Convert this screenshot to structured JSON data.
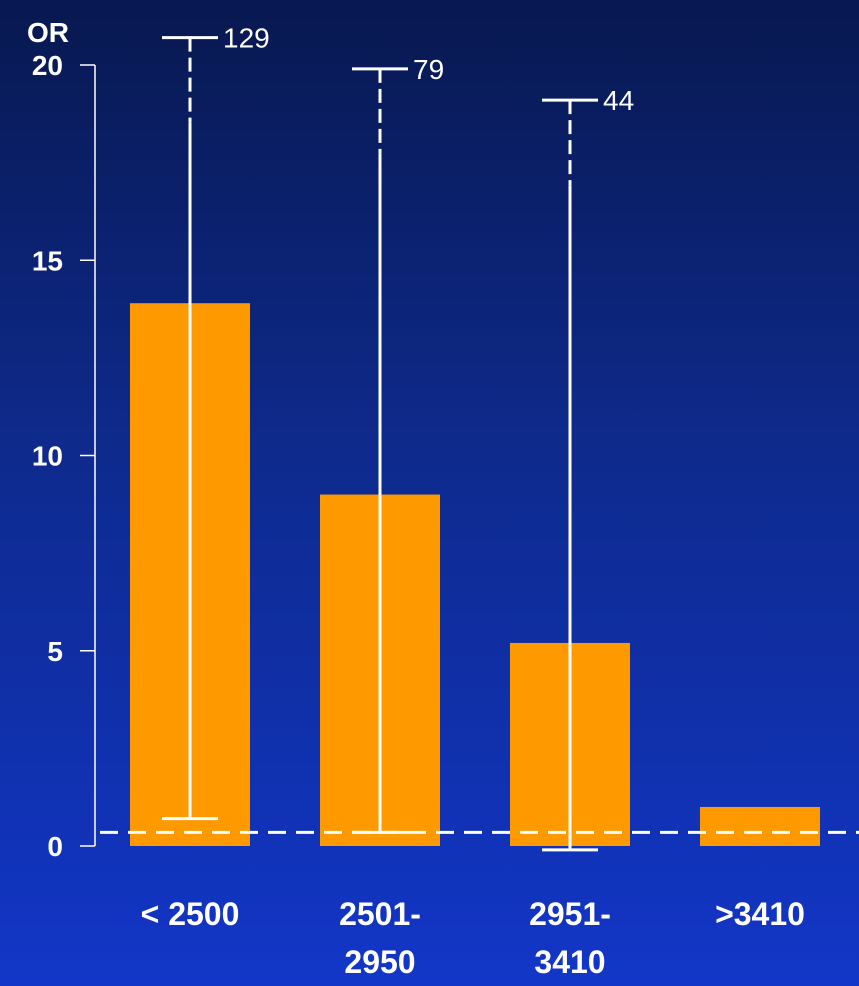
{
  "chart_data": {
    "type": "bar",
    "ylabel": "OR",
    "ylim": [
      0,
      20
    ],
    "yticks": [
      0,
      5,
      10,
      15,
      20
    ],
    "categories": [
      [
        "< 2500"
      ],
      [
        "2501-",
        "2950"
      ],
      [
        "2951-",
        "3410"
      ],
      [
        ">3410"
      ]
    ],
    "values": [
      13.9,
      9.0,
      5.2,
      1.0
    ],
    "ci_lower": [
      0.7,
      0.35,
      -0.1,
      null
    ],
    "ci_upper": [
      129,
      79,
      44,
      null
    ],
    "ci_upper_axis_marker": [
      20.7,
      19.9,
      19.1,
      null
    ],
    "reference_line": 0.35,
    "grid": false,
    "legend": "none"
  },
  "colors": {
    "bar": "#ff9900",
    "axis": "#ffffff",
    "text": "#ffffff"
  }
}
